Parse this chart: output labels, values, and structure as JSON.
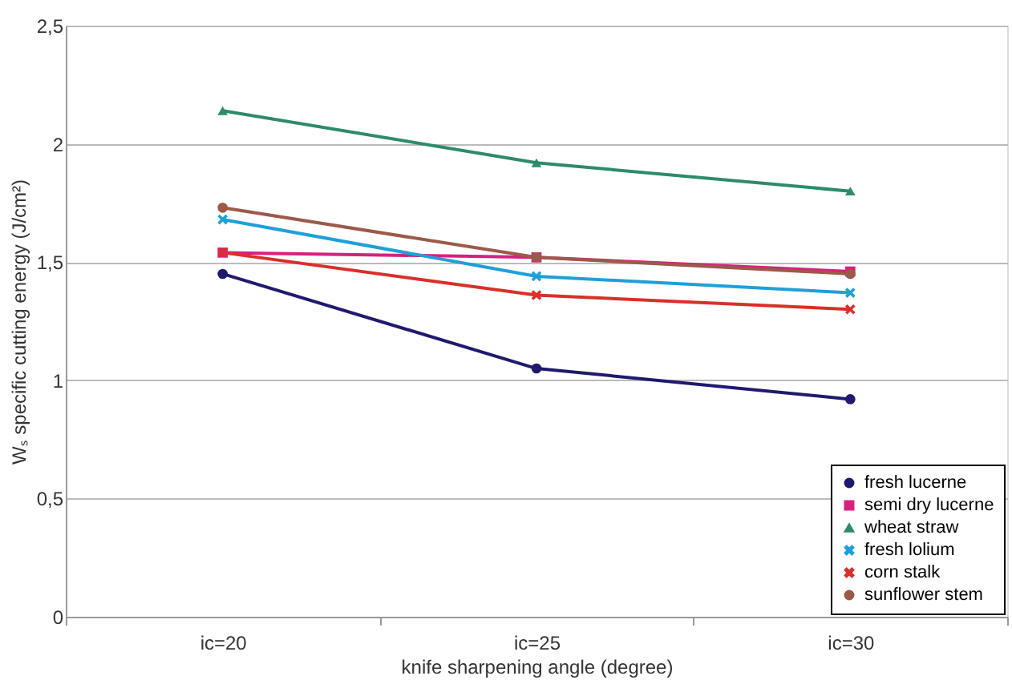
{
  "chart_data": {
    "type": "line",
    "xlabel": "knife sharpening angle (degree)",
    "ylabel": "Wₛ specific cutting energy (J/cm²)",
    "categories": [
      "ic=20",
      "ic=25",
      "ic=30"
    ],
    "series": [
      {
        "name": "fresh lucerne",
        "color": "#1f1a6e",
        "marker": "circle",
        "values": [
          1.45,
          1.05,
          0.92
        ]
      },
      {
        "name": "semi dry lucerne",
        "color": "#d6217f",
        "marker": "square",
        "values": [
          1.54,
          1.52,
          1.46
        ]
      },
      {
        "name": "wheat straw",
        "color": "#2e8b6a",
        "marker": "triangle",
        "values": [
          2.14,
          1.92,
          1.8
        ]
      },
      {
        "name": "fresh lolium",
        "color": "#1ea0d8",
        "marker": "cross",
        "values": [
          1.68,
          1.44,
          1.37
        ]
      },
      {
        "name": "corn stalk",
        "color": "#d9302a",
        "marker": "cross",
        "values": [
          1.54,
          1.36,
          1.3
        ]
      },
      {
        "name": "sunflower stem",
        "color": "#9b5a4a",
        "marker": "circle",
        "values": [
          1.73,
          1.52,
          1.45
        ]
      }
    ],
    "ylim": [
      0,
      2.5
    ],
    "yticks": [
      0,
      {
        "value": 0.5,
        "label": "0,5"
      },
      1,
      {
        "value": 1.5,
        "label": "1,5"
      },
      2,
      {
        "value": 2.5,
        "label": "2,5"
      }
    ],
    "grid": "y",
    "legend": "bottom right",
    "line_style": "solid"
  }
}
